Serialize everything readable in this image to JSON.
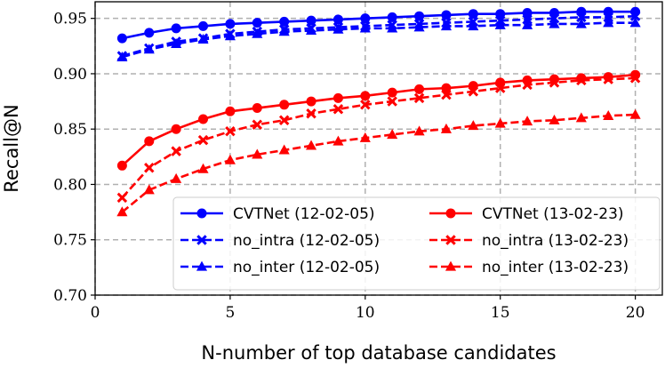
{
  "chart_data": {
    "type": "line",
    "xlabel": "N-number of top database candidates",
    "ylabel": "Recall@N",
    "xlim": [
      0,
      21
    ],
    "ylim": [
      0.7,
      0.965
    ],
    "xticks": [
      0,
      5,
      10,
      15,
      20
    ],
    "yticks": [
      0.7,
      0.75,
      0.8,
      0.85,
      0.9,
      0.95
    ],
    "xtick_labels": [
      "0",
      "5",
      "10",
      "15",
      "20"
    ],
    "ytick_labels": [
      "0.70",
      "0.75",
      "0.80",
      "0.85",
      "0.90",
      "0.95"
    ],
    "grid": true,
    "legend_position": "lower-right",
    "legend_columns": 2,
    "x": [
      1,
      2,
      3,
      4,
      5,
      6,
      7,
      8,
      9,
      10,
      11,
      12,
      13,
      14,
      15,
      16,
      17,
      18,
      19,
      20
    ],
    "series": [
      {
        "name": "CVTNet (12-02-05)",
        "color": "#0000ff",
        "linestyle": "solid",
        "marker": "circle",
        "values": [
          0.932,
          0.937,
          0.941,
          0.943,
          0.945,
          0.946,
          0.947,
          0.948,
          0.949,
          0.95,
          0.951,
          0.952,
          0.953,
          0.954,
          0.954,
          0.955,
          0.955,
          0.956,
          0.956,
          0.956
        ]
      },
      {
        "name": "no_intra (12-02-05)",
        "color": "#0000ff",
        "linestyle": "dashed",
        "marker": "x",
        "values": [
          0.916,
          0.923,
          0.929,
          0.932,
          0.936,
          0.938,
          0.94,
          0.941,
          0.942,
          0.943,
          0.944,
          0.945,
          0.946,
          0.947,
          0.948,
          0.949,
          0.95,
          0.951,
          0.951,
          0.952
        ]
      },
      {
        "name": "no_inter (12-02-05)",
        "color": "#0000ff",
        "linestyle": "dashed",
        "marker": "triangle",
        "values": [
          0.915,
          0.922,
          0.927,
          0.931,
          0.934,
          0.936,
          0.938,
          0.939,
          0.94,
          0.941,
          0.941,
          0.942,
          0.943,
          0.943,
          0.944,
          0.944,
          0.945,
          0.945,
          0.946,
          0.946
        ]
      },
      {
        "name": "CVTNet (13-02-23)",
        "color": "#ff0000",
        "linestyle": "solid",
        "marker": "circle",
        "values": [
          0.817,
          0.839,
          0.85,
          0.859,
          0.866,
          0.869,
          0.872,
          0.875,
          0.878,
          0.88,
          0.883,
          0.886,
          0.887,
          0.889,
          0.892,
          0.894,
          0.895,
          0.896,
          0.897,
          0.899
        ]
      },
      {
        "name": "no_intra (13-02-23)",
        "color": "#ff0000",
        "linestyle": "dashed",
        "marker": "x",
        "values": [
          0.788,
          0.815,
          0.83,
          0.84,
          0.848,
          0.854,
          0.858,
          0.864,
          0.868,
          0.872,
          0.875,
          0.878,
          0.881,
          0.884,
          0.887,
          0.89,
          0.892,
          0.894,
          0.895,
          0.896
        ]
      },
      {
        "name": "no_inter (13-02-23)",
        "color": "#ff0000",
        "linestyle": "dashed",
        "marker": "triangle",
        "values": [
          0.775,
          0.795,
          0.805,
          0.814,
          0.822,
          0.827,
          0.831,
          0.835,
          0.839,
          0.842,
          0.845,
          0.848,
          0.85,
          0.853,
          0.855,
          0.857,
          0.858,
          0.86,
          0.862,
          0.863
        ]
      }
    ]
  }
}
